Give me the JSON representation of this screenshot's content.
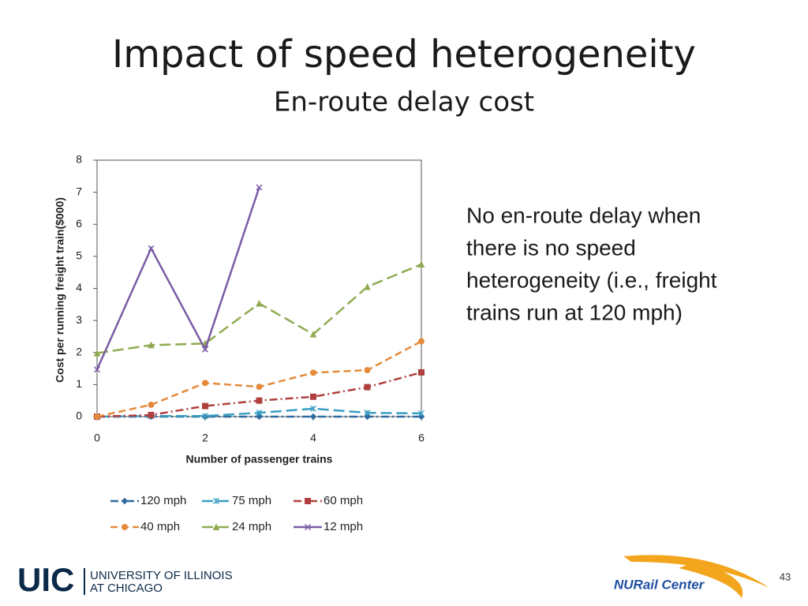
{
  "slide": {
    "title": "Impact of speed heterogeneity",
    "subtitle": "En-route delay cost",
    "note_lines": [
      "No en-route delay when",
      "there is no speed",
      "heterogeneity (i.e., freight",
      "trains run at 120 mph)"
    ],
    "uic_logo": "UIC",
    "uic_name_lines": [
      "UNIVERSITY OF ILLINOIS",
      "AT CHICAGO"
    ],
    "nurail_logo": "NURail Center",
    "page_number": "43"
  },
  "chart_data": {
    "type": "line",
    "x_label": "Number of passenger trains",
    "y_label": "Cost per running freight train($000)",
    "x": [
      0,
      1,
      2,
      3,
      4,
      5,
      6
    ],
    "xlim": [
      0,
      6
    ],
    "xticks": [
      0,
      2,
      4,
      6
    ],
    "ylim": [
      0,
      8
    ],
    "yticks": [
      0,
      1,
      2,
      3,
      4,
      5,
      6,
      7,
      8
    ],
    "grid": false,
    "legend": "bottom",
    "series": [
      {
        "name": "120 mph",
        "color": "#2f6a9f",
        "marker": "diamond",
        "dash": "dash-dot",
        "values": [
          0,
          0,
          0,
          0,
          0,
          0,
          0
        ]
      },
      {
        "name": "75 mph",
        "color": "#3a9ec2",
        "marker": "asterisk",
        "dash": "long-dash",
        "values": [
          0,
          0.02,
          0.02,
          0.12,
          0.25,
          0.12,
          0.1
        ]
      },
      {
        "name": "60 mph",
        "color": "#b0403f",
        "marker": "square",
        "dash": "dash-dot",
        "values": [
          0,
          0.05,
          0.33,
          0.5,
          0.62,
          0.92,
          1.38
        ]
      },
      {
        "name": "40 mph",
        "color": "#e58a3c",
        "marker": "circle",
        "dash": "dash",
        "values": [
          0,
          0.37,
          1.05,
          0.93,
          1.37,
          1.45,
          2.35
        ]
      },
      {
        "name": "24 mph",
        "color": "#8fab52",
        "marker": "triangle",
        "dash": "long-dash",
        "values": [
          1.98,
          2.23,
          2.28,
          3.53,
          2.57,
          4.05,
          4.75
        ]
      },
      {
        "name": "12 mph",
        "color": "#7a5ca6",
        "marker": "x",
        "dash": "solid",
        "values": [
          1.47,
          5.25,
          2.1,
          7.15,
          null,
          null,
          null
        ]
      }
    ]
  }
}
